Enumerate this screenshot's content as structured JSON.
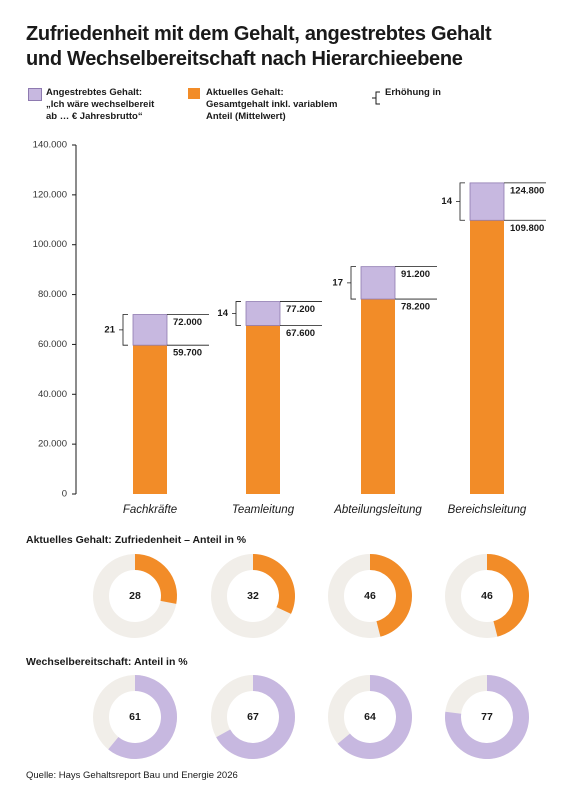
{
  "chart_data": [
    {
      "type": "bar",
      "title": "Zufriedenheit mit dem Gehalt, angestrebtes Gehalt\nund Wechselbereitschaft nach Hierarchieebene",
      "categories": [
        "Fachkräfte",
        "Teamleitung",
        "Abteilungsleitung",
        "Bereichsleitung"
      ],
      "series": [
        {
          "name": "Angestrebtes Gehalt:\n„Ich wäre wechselbereit\nab … € Jahresbrutto“",
          "color": "#c7b8e0",
          "values": [
            72000,
            77200,
            91200,
            124800
          ],
          "value_labels": [
            "72.000",
            "77.200",
            "91.200",
            "124.800"
          ]
        },
        {
          "name": "Aktuelles Gehalt:\nGesamtgehalt inkl. variablem\nAnteil (Mittelwert)",
          "color": "#f28c28",
          "values": [
            59700,
            67600,
            78200,
            109800
          ],
          "value_labels": [
            "59.700",
            "67.600",
            "78.200",
            "109.800"
          ]
        }
      ],
      "increase": {
        "name": "Erhöhung in",
        "values": [
          21,
          14,
          17,
          14
        ]
      },
      "ylim": [
        0,
        140000
      ],
      "yticks": [
        0,
        {
          "value": 20000,
          "label": "20.000"
        },
        {
          "value": 40000,
          "label": "40.000"
        },
        {
          "value": 60000,
          "label": "60.000"
        },
        {
          "value": 80000,
          "label": "80.000"
        },
        {
          "value": 100000,
          "label": "100.000"
        },
        {
          "value": 120000,
          "label": "120.000"
        },
        {
          "value": 140000,
          "label": "140.000"
        }
      ]
    },
    {
      "type": "donut",
      "title": "Aktuelles Gehalt: Zufriedenheit – Anteil in %",
      "color": "#f28c28",
      "values": [
        28,
        32,
        46,
        46
      ]
    },
    {
      "type": "donut",
      "title": "Wechselbereitschaft: Anteil in %",
      "color": "#c7b8e0",
      "values": [
        61,
        67,
        64,
        77
      ]
    }
  ],
  "source": "Quelle: Hays Gehaltsreport Bau und Energie 2026"
}
